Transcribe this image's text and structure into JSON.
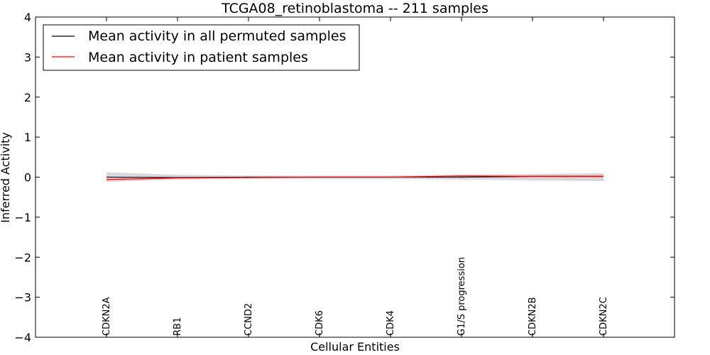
{
  "chart_data": {
    "type": "line",
    "title": "TCGA08_retinoblastoma -- 211 samples",
    "xlabel": "Cellular Entities",
    "ylabel": "Inferred Activity",
    "ylim": [
      -4,
      4
    ],
    "yticks": [
      4,
      3,
      2,
      1,
      0,
      -1,
      -2,
      -3,
      -4
    ],
    "ytick_labels": [
      "4",
      "3",
      "2",
      "1",
      "0",
      "−1",
      "−2",
      "−3",
      "−4"
    ],
    "categories": [
      "CDKN2A",
      "RB1",
      "CCND2",
      "CDK6",
      "CDK4",
      "G1/S progression",
      "CDKN2B",
      "CDKN2C"
    ],
    "legend_position": "top-left",
    "grid": false,
    "series": [
      {
        "name": "Mean activity in all permuted samples",
        "color": "#000000",
        "values": [
          0.0,
          -0.01,
          0.0,
          0.0,
          0.0,
          0.0,
          0.02,
          0.02
        ],
        "band_lower": [
          -0.12,
          -0.06,
          -0.04,
          -0.04,
          -0.04,
          -0.06,
          -0.08,
          -0.1
        ],
        "band_upper": [
          0.12,
          0.06,
          0.04,
          0.04,
          0.04,
          0.06,
          0.08,
          0.1
        ],
        "band_color": "#c8c8d2"
      },
      {
        "name": "Mean activity in patient samples",
        "color": "#ff0000",
        "values": [
          -0.06,
          -0.02,
          -0.01,
          0.0,
          0.0,
          0.03,
          0.02,
          0.02
        ],
        "band_lower": [
          -0.1,
          -0.05,
          -0.03,
          -0.02,
          -0.02,
          0.0,
          -0.02,
          -0.03
        ],
        "band_upper": [
          -0.02,
          0.01,
          0.01,
          0.02,
          0.02,
          0.06,
          0.06,
          0.07
        ],
        "band_color": "#f2c4c4"
      }
    ]
  }
}
